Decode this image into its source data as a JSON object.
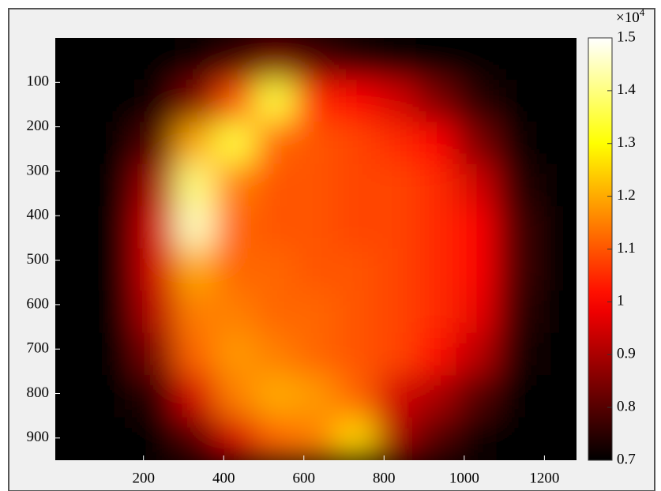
{
  "chart_data": {
    "type": "heatmap",
    "colormap": "hot",
    "xlim": [
      -20,
      1280
    ],
    "ylim": [
      0,
      950
    ],
    "y_reversed": true,
    "xticks": [
      200,
      400,
      600,
      800,
      1000,
      1200
    ],
    "yticks": [
      100,
      200,
      300,
      400,
      500,
      600,
      700,
      800,
      900
    ],
    "x": [
      30,
      130,
      230,
      330,
      430,
      530,
      630,
      730,
      830,
      930,
      1030,
      1130,
      1230
    ],
    "y": [
      47,
      142,
      237,
      332,
      427,
      522,
      617,
      712,
      807,
      902
    ],
    "z": [
      [
        0.7,
        0.7,
        0.7,
        0.72,
        0.78,
        0.85,
        0.8,
        0.75,
        0.72,
        0.7,
        0.7,
        0.7,
        0.7
      ],
      [
        0.7,
        0.7,
        0.72,
        0.85,
        1.1,
        1.35,
        1.05,
        1.0,
        0.95,
        0.85,
        0.75,
        0.7,
        0.7
      ],
      [
        0.7,
        0.7,
        0.8,
        1.2,
        1.35,
        1.12,
        1.1,
        1.08,
        1.05,
        1.0,
        0.85,
        0.72,
        0.7
      ],
      [
        0.7,
        0.7,
        0.9,
        1.4,
        1.15,
        1.1,
        1.1,
        1.08,
        1.08,
        1.05,
        0.95,
        0.75,
        0.7
      ],
      [
        0.7,
        0.7,
        0.95,
        1.45,
        1.12,
        1.1,
        1.1,
        1.08,
        1.08,
        1.05,
        1.0,
        0.78,
        0.7
      ],
      [
        0.7,
        0.7,
        0.95,
        1.2,
        1.12,
        1.12,
        1.1,
        1.1,
        1.08,
        1.05,
        1.0,
        0.78,
        0.7
      ],
      [
        0.7,
        0.7,
        0.92,
        1.15,
        1.15,
        1.12,
        1.12,
        1.1,
        1.08,
        1.05,
        0.98,
        0.76,
        0.7
      ],
      [
        0.7,
        0.7,
        0.85,
        1.12,
        1.18,
        1.15,
        1.12,
        1.1,
        1.08,
        1.02,
        0.92,
        0.73,
        0.7
      ],
      [
        0.7,
        0.7,
        0.75,
        0.95,
        1.15,
        1.2,
        1.18,
        1.12,
        0.95,
        0.9,
        0.8,
        0.7,
        0.7
      ],
      [
        0.7,
        0.7,
        0.7,
        0.8,
        0.95,
        1.12,
        1.15,
        1.25,
        0.9,
        0.8,
        0.72,
        0.7,
        0.7
      ]
    ],
    "clim": [
      0.7,
      1.5
    ],
    "cticks": [
      0.7,
      0.8,
      0.9,
      1,
      1.1,
      1.2,
      1.3,
      1.4,
      1.5
    ],
    "colorbar_multiplier": {
      "base": "×10",
      "exponent": "4"
    }
  }
}
